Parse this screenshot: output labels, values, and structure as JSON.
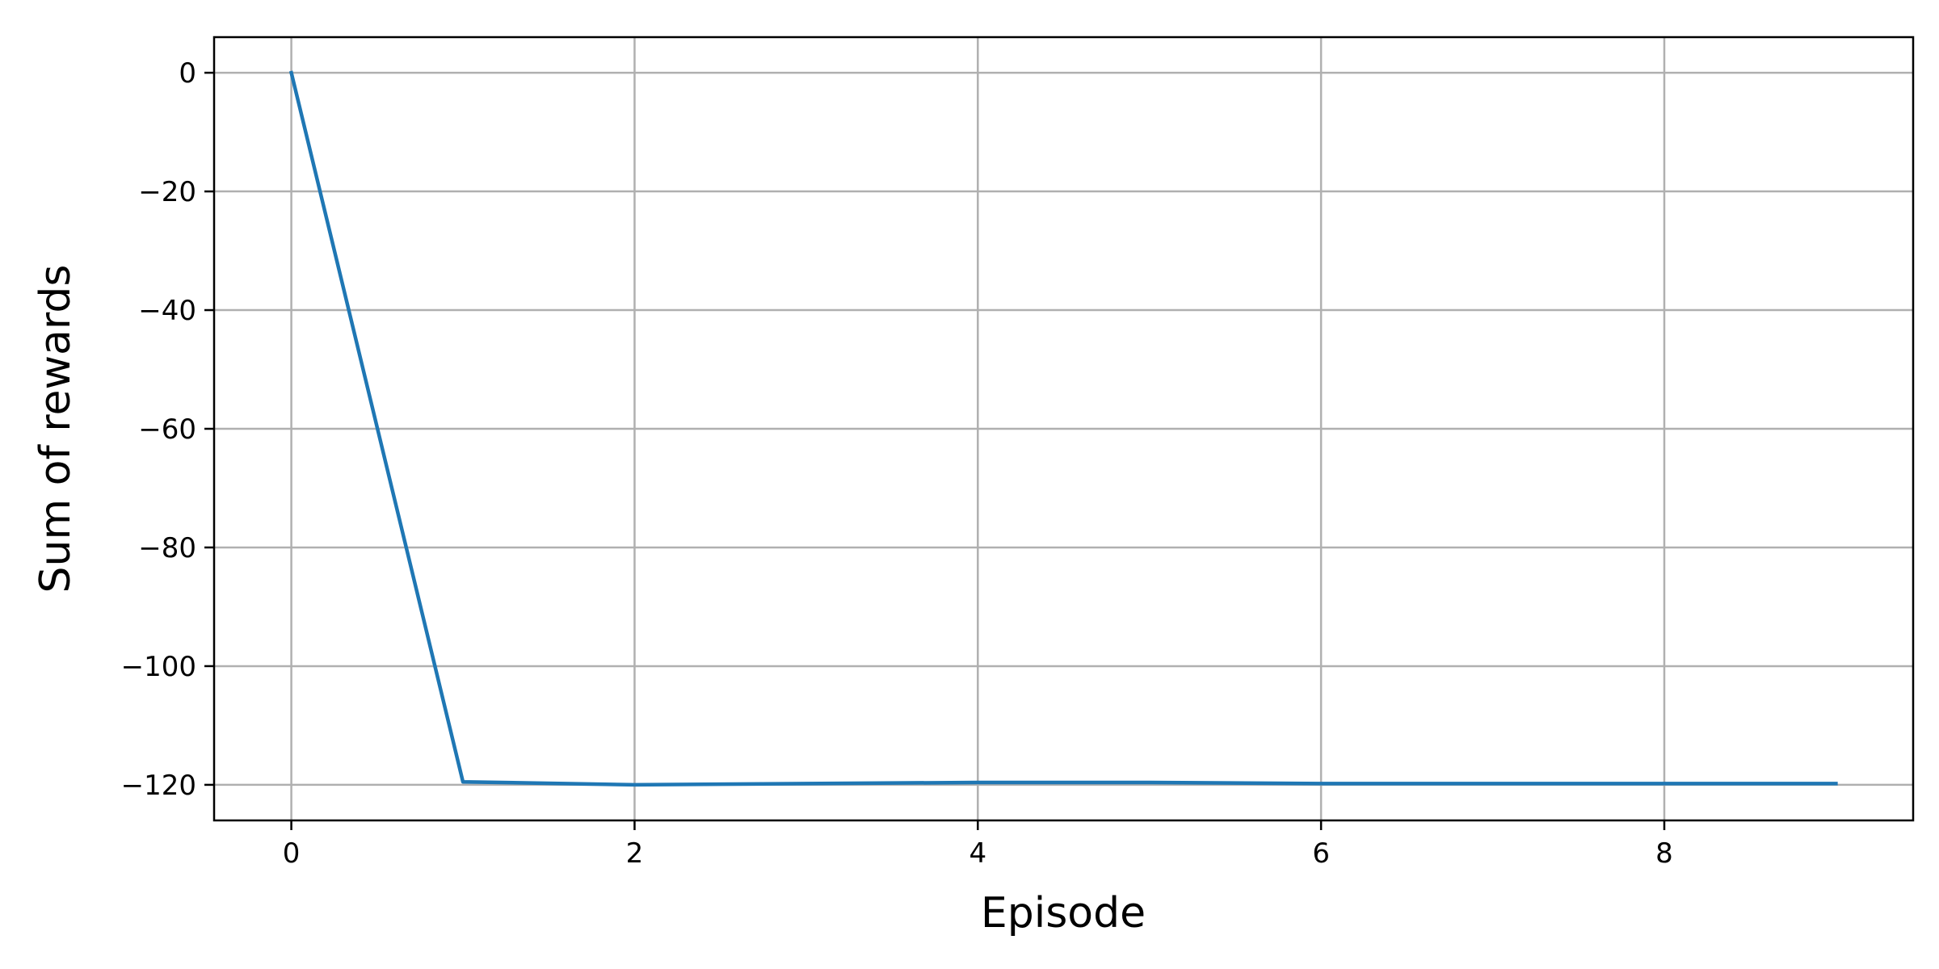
{
  "chart_data": {
    "type": "line",
    "xlabel": "Episode",
    "ylabel": "Sum of rewards",
    "xlim": [
      -0.45,
      9.45
    ],
    "ylim": [
      -126,
      6
    ],
    "xticks": [
      0,
      2,
      4,
      6,
      8
    ],
    "yticks": [
      0,
      -20,
      -40,
      -60,
      -80,
      -100,
      -120
    ],
    "xtick_labels": [
      "0",
      "2",
      "4",
      "6",
      "8"
    ],
    "ytick_labels": [
      "0",
      "−20",
      "−40",
      "−60",
      "−80",
      "−100",
      "−120"
    ],
    "grid": true,
    "series": [
      {
        "color": "#1f77b4",
        "x": [
          0,
          1,
          2,
          3,
          4,
          5,
          6,
          7,
          8,
          9
        ],
        "y": [
          0,
          -119.5,
          -120,
          -119.8,
          -119.6,
          -119.6,
          -119.8,
          -119.8,
          -119.8,
          -119.8
        ]
      }
    ]
  }
}
